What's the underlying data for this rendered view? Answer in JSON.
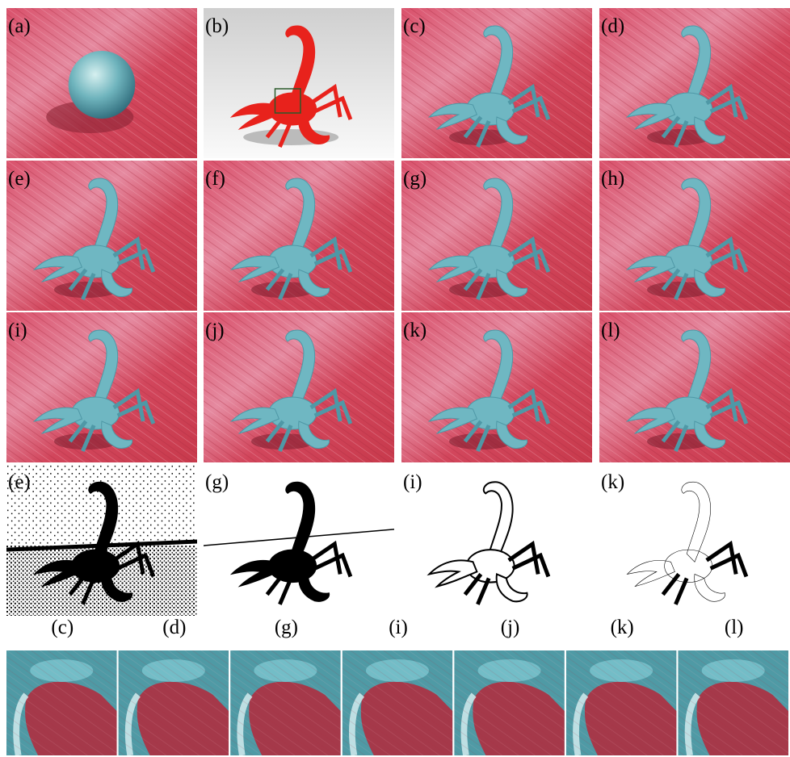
{
  "panels": [
    {
      "label": "(a)"
    },
    {
      "label": "(b)"
    },
    {
      "label": "(c)"
    },
    {
      "label": "(d)"
    },
    {
      "label": "(e)"
    },
    {
      "label": "(f)"
    },
    {
      "label": "(g)"
    },
    {
      "label": "(h)"
    },
    {
      "label": "(i)"
    },
    {
      "label": "(j)"
    },
    {
      "label": "(k)"
    },
    {
      "label": "(l)"
    }
  ],
  "mask_panels": [
    {
      "label": "(e)"
    },
    {
      "label": "(g)"
    },
    {
      "label": "(i)"
    },
    {
      "label": "(k)"
    }
  ],
  "crops": [
    {
      "label": "(c)"
    },
    {
      "label": "(d)"
    },
    {
      "label": "(g)"
    },
    {
      "label": "(i)"
    },
    {
      "label": "(j)"
    },
    {
      "label": "(k)"
    },
    {
      "label": "(l)"
    }
  ]
}
